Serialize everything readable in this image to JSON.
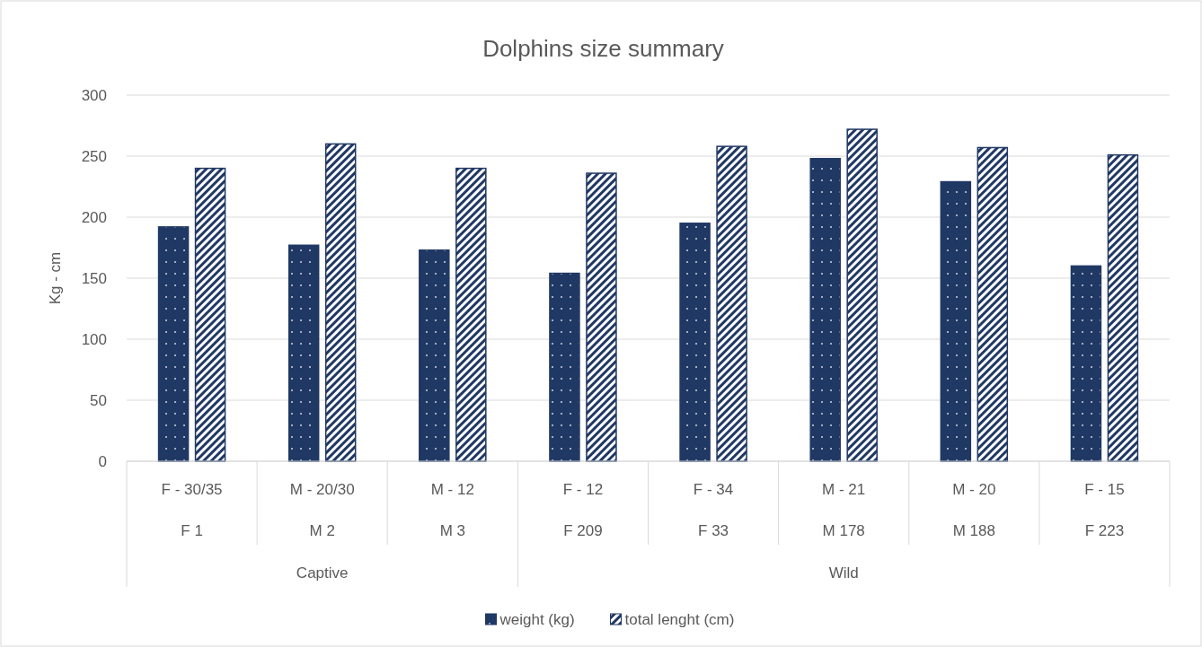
{
  "chart_data": {
    "type": "bar",
    "title": "Dolphins size summary",
    "ylabel": "Kg - cm",
    "categories": [
      "F - 30/35\nF 1",
      "M - 20/30\nM 2",
      "M - 12\nM 3",
      "F - 12\nF 209",
      "F - 34\nF 33",
      "M - 21\nM 178",
      "M - 20\nM 188",
      "F - 15\nF 223"
    ],
    "annotations": [
      "Captive",
      "Wild"
    ],
    "series": [
      {
        "name": "weight (kg)",
        "color": "#203864",
        "values": [
          192,
          177,
          173,
          154,
          195,
          248,
          229,
          160
        ]
      },
      {
        "name": "total lenght (cm)",
        "color": "#203864",
        "values": [
          240,
          260,
          240,
          236,
          258,
          272,
          257,
          251
        ]
      }
    ],
    "ylim": [
      0,
      300
    ],
    "yticks": [
      0,
      50,
      100,
      150,
      200,
      250,
      300
    ],
    "grid": "y",
    "legend": "bottom"
  }
}
